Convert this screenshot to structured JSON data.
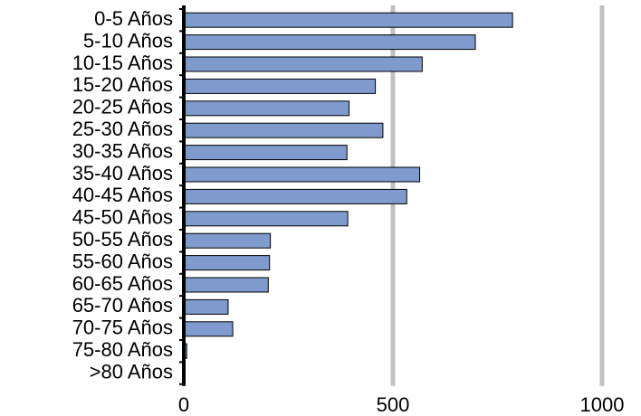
{
  "chart_data": {
    "type": "bar",
    "orientation": "horizontal",
    "categories": [
      "0-5 Años",
      "5-10 Años",
      "10-15 Años",
      "15-20 Años",
      "20-25 Años",
      "25-30 Años",
      "30-35 Años",
      "35-40 Años",
      "40-45 Años",
      "45-50 Años",
      "50-55 Años",
      "55-60 Años",
      "60-65 Años",
      "65-70 Años",
      "70-75 Años",
      "75-80 Años",
      ">80 Años"
    ],
    "values": [
      786,
      697,
      570,
      458,
      395,
      476,
      390,
      564,
      533,
      392,
      207,
      205,
      202,
      106,
      117,
      7,
      2
    ],
    "xlim": [
      0,
      1000
    ],
    "xticks": [
      0,
      500,
      1000
    ],
    "xtick_labels": [
      "0",
      "500",
      "1000"
    ],
    "grid": "vertical",
    "title": "",
    "xlabel": "",
    "ylabel": "",
    "colors": {
      "bar_fill": "#7f9acc",
      "bar_stroke": "#000000",
      "grid": "#c0c0c0",
      "axis": "#000000"
    }
  }
}
